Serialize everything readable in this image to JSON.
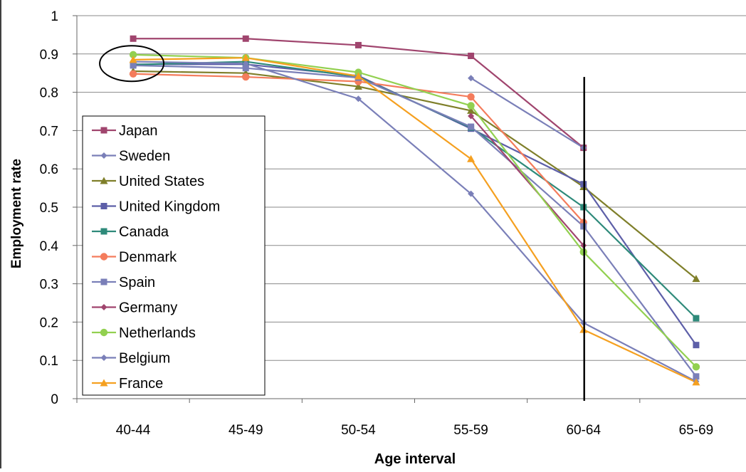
{
  "chart_data": {
    "type": "line",
    "title": "",
    "xlabel": "Age interval",
    "ylabel": "Employment rate",
    "categories": [
      "40-44",
      "45-49",
      "50-54",
      "55-59",
      "60-64",
      "65-69"
    ],
    "ylim": [
      0,
      1
    ],
    "yticks": [
      "0",
      "0.1",
      "0.2",
      "0.3",
      "0.4",
      "0.5",
      "0.6",
      "0.7",
      "0.8",
      "0.9",
      "1"
    ],
    "grid": "horizontal",
    "legend_position": "left",
    "annotations": [
      {
        "kind": "vertical-line",
        "at": "60-64",
        "y_range": [
          0,
          0.84
        ]
      },
      {
        "kind": "ellipse",
        "at": "40-44",
        "y_center": 0.875
      }
    ],
    "series": [
      {
        "name": "Japan",
        "color": "#a0456e",
        "marker": "square",
        "values": [
          0.94,
          0.94,
          0.923,
          0.895,
          0.655,
          null
        ]
      },
      {
        "name": "Sweden",
        "color": "#7a7fb8",
        "marker": "diamond",
        "values": [
          null,
          null,
          null,
          0.837,
          0.655,
          null
        ]
      },
      {
        "name": "United States",
        "color": "#7f7f2a",
        "marker": "triangle",
        "values": [
          0.855,
          0.85,
          0.815,
          0.752,
          0.553,
          0.313
        ]
      },
      {
        "name": "United Kingdom",
        "color": "#5d5fa8",
        "marker": "square",
        "values": [
          0.873,
          0.873,
          0.843,
          0.705,
          0.56,
          0.14
        ]
      },
      {
        "name": "Canada",
        "color": "#2e8a7a",
        "marker": "square",
        "values": [
          0.872,
          0.88,
          0.84,
          0.708,
          0.5,
          0.21
        ]
      },
      {
        "name": "Denmark",
        "color": "#f47c5c",
        "marker": "circle",
        "values": [
          0.848,
          0.84,
          0.828,
          0.788,
          0.46,
          null
        ]
      },
      {
        "name": "Spain",
        "color": "#7a7fb8",
        "marker": "square",
        "values": [
          0.87,
          0.863,
          0.838,
          0.71,
          0.45,
          0.058
        ]
      },
      {
        "name": "Germany",
        "color": "#a0456e",
        "marker": "diamond",
        "values": [
          null,
          null,
          null,
          0.738,
          0.4,
          null
        ]
      },
      {
        "name": "Netherlands",
        "color": "#92d050",
        "marker": "circle",
        "values": [
          0.898,
          0.89,
          0.852,
          0.765,
          0.383,
          0.083
        ]
      },
      {
        "name": "Belgium",
        "color": "#7a7fb8",
        "marker": "diamond",
        "values": [
          0.88,
          0.875,
          0.783,
          0.535,
          0.198,
          0.045
        ]
      },
      {
        "name": "France",
        "color": "#f5a020",
        "marker": "triangle",
        "values": [
          0.885,
          0.89,
          0.842,
          0.626,
          0.18,
          0.043
        ]
      }
    ]
  }
}
